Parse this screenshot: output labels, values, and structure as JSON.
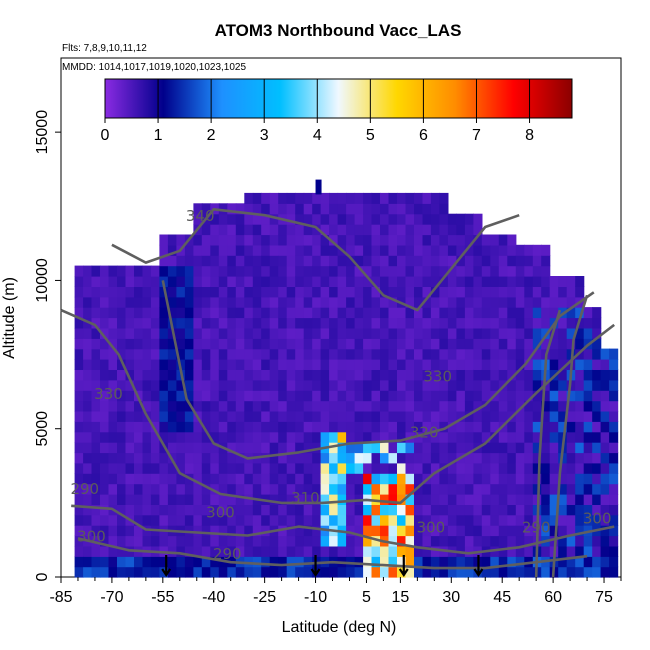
{
  "chart_data": {
    "type": "heatmap",
    "title": "ATOM3 Northbound Vacc_LAS",
    "flights_label": "Flts: 7,8,9,10,11,12",
    "dates_label": "MMDD: 1014,1017,1019,1020,1023,1025",
    "xlabel": "Latitude (deg N)",
    "ylabel": "Altitude (m)",
    "xlim": [
      -85,
      80
    ],
    "ylim": [
      0,
      17500
    ],
    "xticks": [
      -85,
      -70,
      -55,
      -40,
      -25,
      -10,
      5,
      15,
      30,
      45,
      60,
      75
    ],
    "xtick_labels": [
      "-85",
      "-70",
      "-55",
      "-40",
      "-25",
      "-10",
      "5",
      "15",
      "30",
      "45",
      "60",
      "75"
    ],
    "yticks": [
      0,
      5000,
      10000,
      15000
    ],
    "ytick_labels": [
      "0",
      "5000",
      "10000",
      "15000"
    ],
    "colorbar": {
      "min": 0,
      "max": 8.8,
      "ticks": [
        0,
        1,
        2,
        3,
        4,
        5,
        6,
        7,
        8
      ],
      "tick_labels": [
        "0",
        "1",
        "2",
        "3",
        "4",
        "5",
        "6",
        "7",
        "8"
      ],
      "colors": [
        "#8a2be2",
        "#00008b",
        "#1e90ff",
        "#00bfff",
        "#f0f8ff",
        "#ffd700",
        "#ff8c00",
        "#ff0000",
        "#8b0000"
      ]
    },
    "contours": [
      {
        "label": "340",
        "lat": -44,
        "alt": 12000
      },
      {
        "label": "330",
        "lat": -71,
        "alt": 6000
      },
      {
        "label": "330",
        "lat": 26,
        "alt": 6600
      },
      {
        "label": "320",
        "lat": 22,
        "alt": 4700
      },
      {
        "label": "310",
        "lat": -13,
        "alt": 2500
      },
      {
        "label": "300",
        "lat": -38,
        "alt": 2000
      },
      {
        "label": "300",
        "lat": 24,
        "alt": 1500
      },
      {
        "label": "290",
        "lat": -36,
        "alt": 600
      },
      {
        "label": "290",
        "lat": 55,
        "alt": 1500
      },
      {
        "label": "290",
        "lat": -78,
        "alt": 2800
      },
      {
        "label": "300",
        "lat": -76,
        "alt": 1200
      },
      {
        "label": "300",
        "lat": 73,
        "alt": 1800
      }
    ],
    "arrows_lat": [
      -54,
      -10,
      16,
      38
    ]
  }
}
